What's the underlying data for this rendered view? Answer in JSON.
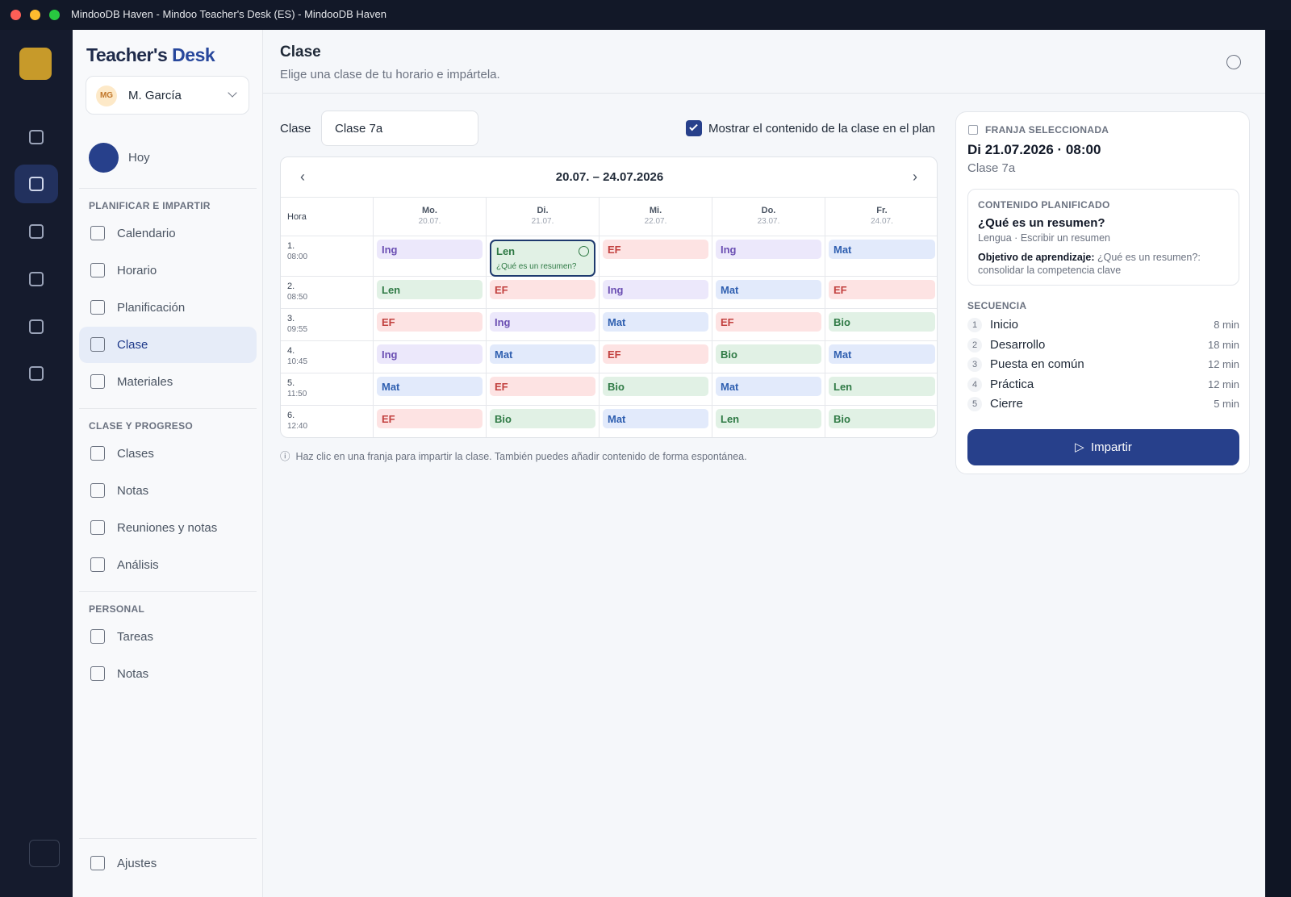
{
  "window": {
    "title": "MindooDB Haven - Mindoo Teacher's Desk (ES) - MindooDB Haven"
  },
  "sidebar": {
    "brand": [
      "Teacher's",
      "Desk"
    ],
    "user": {
      "initials": "MG",
      "name": "M. García"
    },
    "today": "Hoy",
    "sections": [
      {
        "title": "PLANIFICAR E IMPARTIR",
        "items": [
          "Calendario",
          "Horario",
          "Planificación",
          "Clase",
          "Materiales"
        ]
      },
      {
        "title": "CLASE Y PROGRESO",
        "items": [
          "Clases",
          "Notas",
          "Reuniones y notas",
          "Análisis"
        ]
      },
      {
        "title": "PERSONAL",
        "items": [
          "Tareas",
          "Notas"
        ]
      }
    ],
    "active": {
      "section": 0,
      "item": 3
    },
    "settings": "Ajustes"
  },
  "header": {
    "title": "Clase",
    "subtitle": "Elige una clase de tu horario e impártela."
  },
  "controls": {
    "class_label": "Clase",
    "class_value": "Clase 7a",
    "show_content": "Mostrar el contenido de la clase en el plan",
    "show_content_checked": true
  },
  "schedule": {
    "range": "20.07. – 24.07.2026",
    "hour_header": "Hora",
    "days": [
      {
        "name": "Mo.",
        "date": "20.07."
      },
      {
        "name": "Di.",
        "date": "21.07."
      },
      {
        "name": "Mi.",
        "date": "22.07."
      },
      {
        "name": "Do.",
        "date": "23.07."
      },
      {
        "name": "Fr.",
        "date": "24.07."
      }
    ],
    "rows": [
      {
        "period": "1.",
        "time": "08:00",
        "cells": [
          "Ing",
          "Len",
          "EF",
          "Ing",
          "Mat"
        ]
      },
      {
        "period": "2.",
        "time": "08:50",
        "cells": [
          "Len",
          "EF",
          "Ing",
          "Mat",
          "EF"
        ]
      },
      {
        "period": "3.",
        "time": "09:55",
        "cells": [
          "EF",
          "Ing",
          "Mat",
          "EF",
          "Bio"
        ]
      },
      {
        "period": "4.",
        "time": "10:45",
        "cells": [
          "Ing",
          "Mat",
          "EF",
          "Bio",
          "Mat"
        ]
      },
      {
        "period": "5.",
        "time": "11:50",
        "cells": [
          "Mat",
          "EF",
          "Bio",
          "Mat",
          "Len"
        ]
      },
      {
        "period": "6.",
        "time": "12:40",
        "cells": [
          "EF",
          "Bio",
          "Mat",
          "Len",
          "Bio"
        ]
      }
    ],
    "selected": {
      "row": 0,
      "day": 1,
      "note": "¿Qué es un resumen?"
    },
    "subject_colors": {
      "Ing": [
        "#ece8fb",
        "#6b4fb3"
      ],
      "Len": [
        "#e1f1e5",
        "#2f7a45"
      ],
      "EF": [
        "#fde3e3",
        "#c2413f"
      ],
      "Mat": [
        "#e2eafb",
        "#2f5fb0"
      ],
      "Bio": [
        "#e1f1e5",
        "#2f7a45"
      ]
    },
    "hint": "Haz clic en una franja para impartir la clase. También puedes añadir contenido de forma espontánea."
  },
  "panel": {
    "label": "FRANJA SELECCIONADA",
    "datetime": "Di 21.07.2026 · 08:00",
    "class": "Clase 7a",
    "planned": {
      "label": "CONTENIDO PLANIFICADO",
      "title": "¿Qué es un resumen?",
      "meta": "Lengua · Escribir un resumen",
      "objective_label": "Objetivo de aprendizaje:",
      "objective": "¿Qué es un resumen?: consolidar la competencia clave"
    },
    "sequence_label": "SECUENCIA",
    "steps": [
      {
        "n": "1",
        "name": "Inicio",
        "duration": "8 min"
      },
      {
        "n": "2",
        "name": "Desarrollo",
        "duration": "18 min"
      },
      {
        "n": "3",
        "name": "Puesta en común",
        "duration": "12 min"
      },
      {
        "n": "4",
        "name": "Práctica",
        "duration": "12 min"
      },
      {
        "n": "5",
        "name": "Cierre",
        "duration": "5 min"
      }
    ],
    "button": "Impartir"
  }
}
